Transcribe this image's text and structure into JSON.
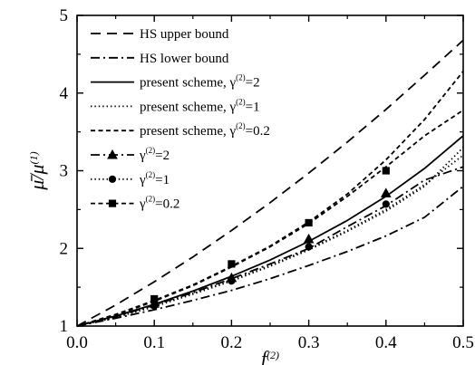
{
  "chart_data": {
    "type": "line",
    "xlabel": "f(2)",
    "ylabel": "μ̄/μ(1)",
    "xlim": [
      0.0,
      0.5
    ],
    "ylim": [
      1,
      5
    ],
    "xticks": [
      "0.0",
      "0.1",
      "0.2",
      "0.3",
      "0.4",
      "0.5"
    ],
    "yticks": [
      "1",
      "2",
      "3",
      "4",
      "5"
    ],
    "legend_position": "top-left",
    "grid": false,
    "series": [
      {
        "name": "HS upper bound",
        "style": "long-dash",
        "marker": "none",
        "x": [
          0,
          0.05,
          0.1,
          0.15,
          0.2,
          0.25,
          0.3,
          0.35,
          0.4,
          0.45,
          0.5
        ],
        "y": [
          1.0,
          1.27,
          1.57,
          1.89,
          2.23,
          2.59,
          2.97,
          3.37,
          3.79,
          4.23,
          4.68
        ]
      },
      {
        "name": "HS lower bound",
        "style": "dash-dot",
        "marker": "none",
        "x": [
          0,
          0.05,
          0.1,
          0.15,
          0.2,
          0.25,
          0.3,
          0.35,
          0.4,
          0.45,
          0.5
        ],
        "y": [
          1.0,
          1.1,
          1.21,
          1.33,
          1.46,
          1.61,
          1.78,
          1.96,
          2.16,
          2.4,
          2.8
        ]
      },
      {
        "name": "present scheme, γ(2)=2",
        "style": "solid",
        "marker": "none",
        "x": [
          0,
          0.05,
          0.1,
          0.15,
          0.2,
          0.25,
          0.3,
          0.35,
          0.4,
          0.45,
          0.5
        ],
        "y": [
          1.0,
          1.13,
          1.28,
          1.45,
          1.64,
          1.85,
          2.09,
          2.36,
          2.67,
          3.03,
          3.45
        ]
      },
      {
        "name": "present scheme, γ(2)=1",
        "style": "dotted",
        "marker": "none",
        "x": [
          0,
          0.05,
          0.1,
          0.15,
          0.2,
          0.25,
          0.3,
          0.35,
          0.4,
          0.45,
          0.5
        ],
        "y": [
          1.0,
          1.12,
          1.26,
          1.42,
          1.59,
          1.78,
          1.99,
          2.23,
          2.5,
          2.82,
          3.2
        ]
      },
      {
        "name": "present scheme, γ(2)=0.2",
        "style": "short-dash",
        "marker": "none",
        "x": [
          0,
          0.05,
          0.1,
          0.15,
          0.2,
          0.25,
          0.3,
          0.35,
          0.4,
          0.45,
          0.5
        ],
        "y": [
          1.0,
          1.15,
          1.33,
          1.53,
          1.77,
          2.03,
          2.34,
          2.7,
          3.14,
          3.66,
          4.28
        ]
      },
      {
        "name": "γ(2)=2",
        "style": "dash-dot",
        "marker": "triangle",
        "x": [
          0,
          0.05,
          0.1,
          0.15,
          0.2,
          0.25,
          0.3,
          0.35,
          0.4,
          0.45,
          0.5
        ],
        "y": [
          1.0,
          1.12,
          1.27,
          1.43,
          1.61,
          1.8,
          2.0,
          2.28,
          2.55,
          2.88,
          3.05
        ]
      },
      {
        "name": "γ(2)=1",
        "style": "dotted",
        "marker": "circle",
        "x": [
          0,
          0.05,
          0.1,
          0.15,
          0.2,
          0.25,
          0.3,
          0.35,
          0.4,
          0.45,
          0.5
        ],
        "y": [
          1.0,
          1.11,
          1.25,
          1.41,
          1.58,
          1.77,
          1.98,
          2.22,
          2.48,
          2.8,
          3.3
        ]
      },
      {
        "name": "γ(2)=0.2",
        "style": "short-dash",
        "marker": "square",
        "x": [
          0,
          0.05,
          0.1,
          0.15,
          0.2,
          0.25,
          0.3,
          0.35,
          0.4,
          0.45,
          0.5
        ],
        "y": [
          1.0,
          1.14,
          1.32,
          1.52,
          1.76,
          2.02,
          2.32,
          2.67,
          3.05,
          3.45,
          3.78
        ]
      }
    ],
    "markers": [
      {
        "series": "γ(2)=2",
        "shape": "triangle",
        "x": [
          0.1,
          0.2,
          0.3,
          0.4
        ],
        "y": [
          1.29,
          1.62,
          2.12,
          2.71
        ]
      },
      {
        "series": "γ(2)=1",
        "shape": "circle",
        "x": [
          0.1,
          0.2,
          0.3,
          0.4
        ],
        "y": [
          1.26,
          1.58,
          2.02,
          2.57
        ]
      },
      {
        "series": "γ(2)=0.2",
        "shape": "square",
        "x": [
          0.1,
          0.2,
          0.3,
          0.4
        ],
        "y": [
          1.35,
          1.8,
          2.33,
          3.0
        ]
      }
    ]
  }
}
